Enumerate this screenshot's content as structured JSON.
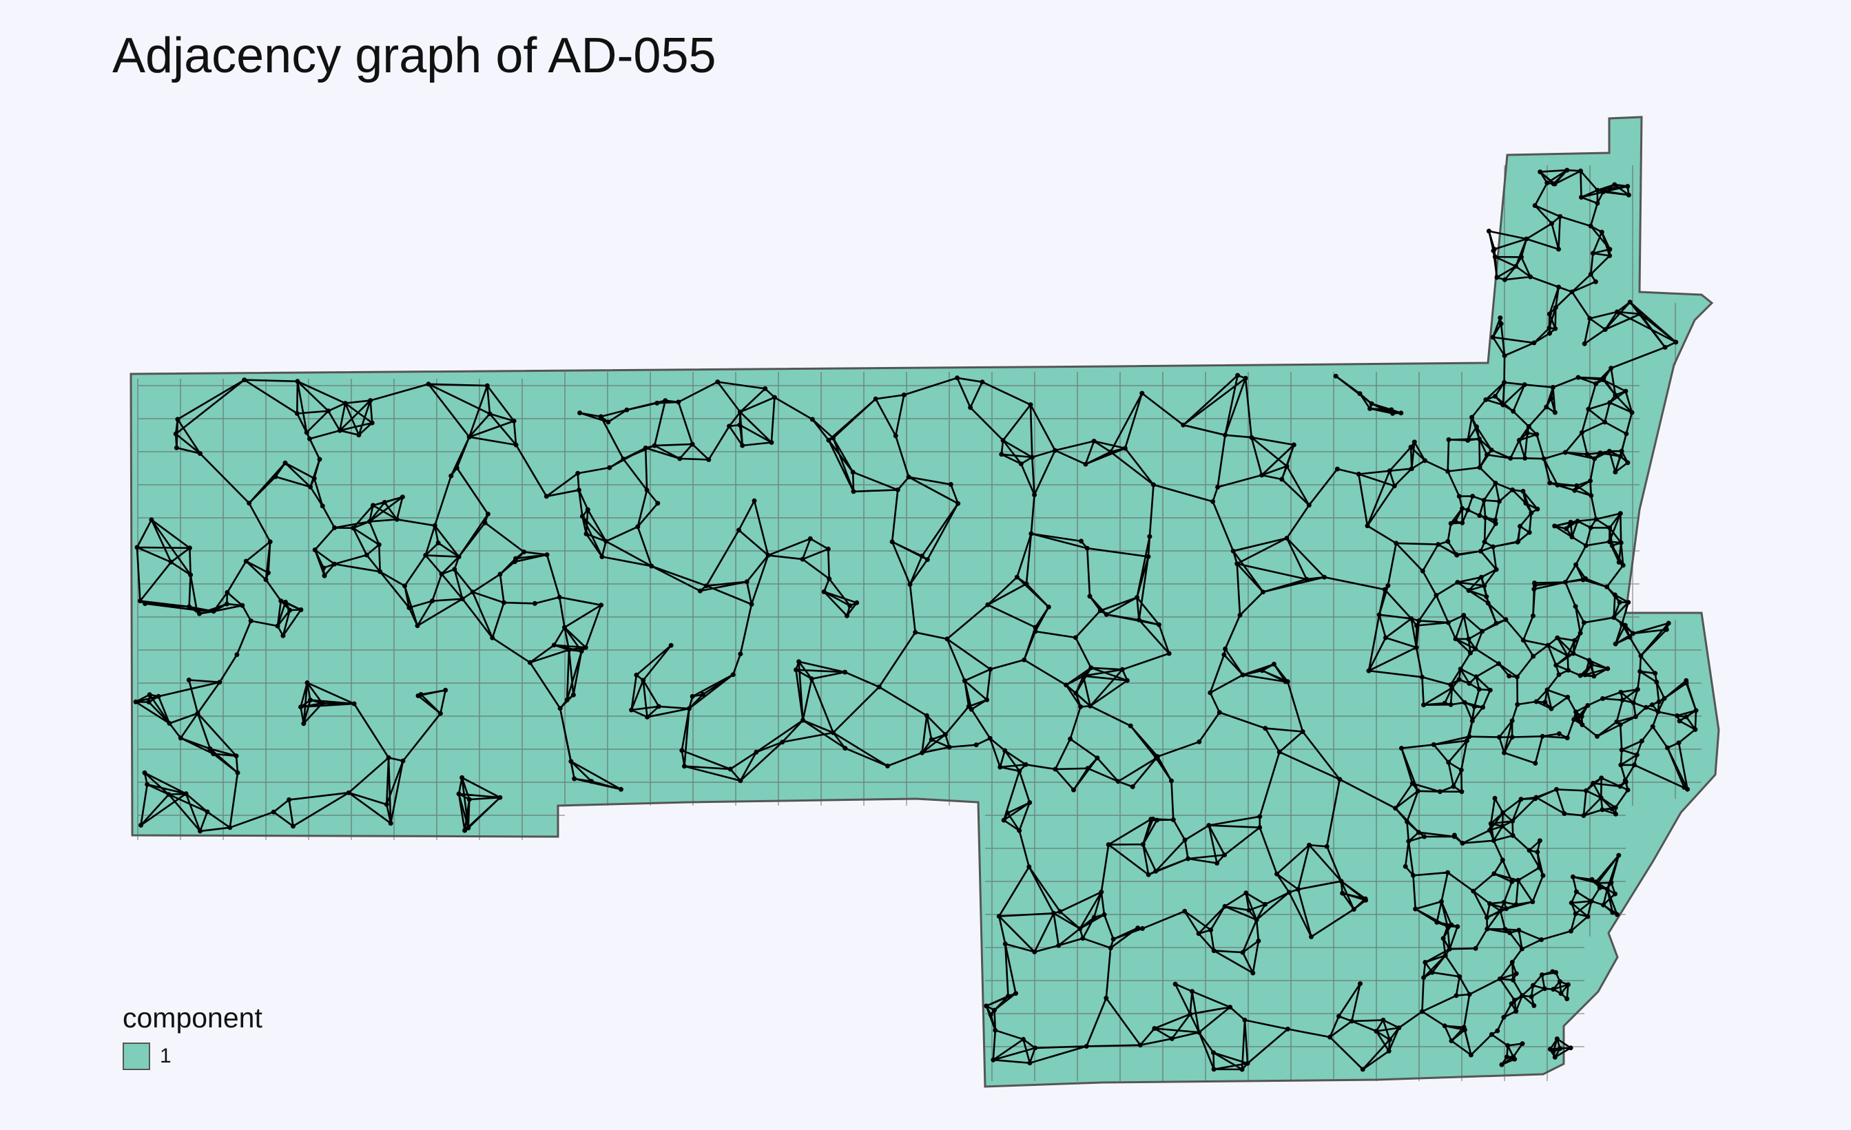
{
  "title": "Adjacency graph of AD-055",
  "legend": {
    "title": "component",
    "items": [
      {
        "label": "1",
        "color": "#7fcdbb"
      }
    ]
  },
  "colors": {
    "fill": "#7fcdbb",
    "boundary": "#555555",
    "edge": "#000000",
    "background": "#f5f6fd"
  }
}
